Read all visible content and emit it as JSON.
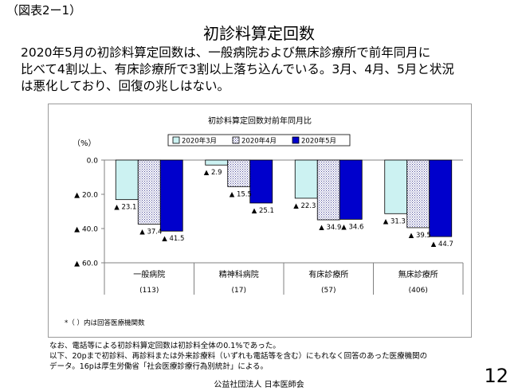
{
  "figure_label": "（図表2ー1）",
  "slide_title": "初診料算定回数",
  "lead_lines": [
    "2020年5月の初診料算定回数は、一般病院および無床診療所で前年同月に",
    "比べて4割以上、有床診療所で3割以上落ち込んでいる。3月、4月、5月と状況",
    "は悪化しており、回復の兆しはない。"
  ],
  "chart_data": {
    "type": "bar",
    "title": "初診料算定回数対前年同月比",
    "ylabel": "（%）",
    "ylim": [
      0,
      -60
    ],
    "yticks": [
      {
        "value": 0,
        "label": "0.0"
      },
      {
        "value": -20,
        "label": "▲ 20.0"
      },
      {
        "value": -40,
        "label": "▲ 40.0"
      },
      {
        "value": -60,
        "label": "▲ 60.0"
      }
    ],
    "categories": [
      "一般病院",
      "精神科病院",
      "有床診療所",
      "無床診療所"
    ],
    "category_counts": [
      "(113)",
      "(17)",
      "(57)",
      "(406)"
    ],
    "series": [
      {
        "name": "2020年3月",
        "values": [
          -23.1,
          -2.9,
          -22.3,
          -31.3
        ],
        "labels": [
          "▲ 23.1",
          "▲ 2.9",
          "▲ 22.3",
          "▲ 31.3"
        ]
      },
      {
        "name": "2020年4月",
        "values": [
          -37.4,
          -15.5,
          -34.9,
          -39.5
        ],
        "labels": [
          "▲ 37.4",
          "▲ 15.5",
          "▲ 34.9",
          "▲ 39.5"
        ]
      },
      {
        "name": "2020年5月",
        "values": [
          -41.5,
          -25.1,
          -34.6,
          -44.7
        ],
        "labels": [
          "▲ 41.5",
          "▲ 25.1",
          "▲ 34.6",
          "▲ 44.7"
        ]
      }
    ],
    "legend_position": "top",
    "footnote": "*（ ）内は回答医療機関数",
    "grid": false
  },
  "colors": {
    "march_fill": "#ccf2f2",
    "april_fill": "#ffffff",
    "april_pattern": "#4d4d99",
    "may_fill": "#0000cc",
    "bar_stroke": "#000000",
    "axis": "#808080"
  },
  "notes": [
    "なお、電話等による初診料算定回数は初診料全体の0.1%であった。",
    "以下、20pまで初診料、再診料または外来診療料（いずれも電話等を含む）にもれなく回答のあった医療機関の",
    "データ。16pは厚生労働省「社会医療診療行為別統計」による。"
  ],
  "organization": "公益社団法人 日本医師会",
  "page_number": "12"
}
